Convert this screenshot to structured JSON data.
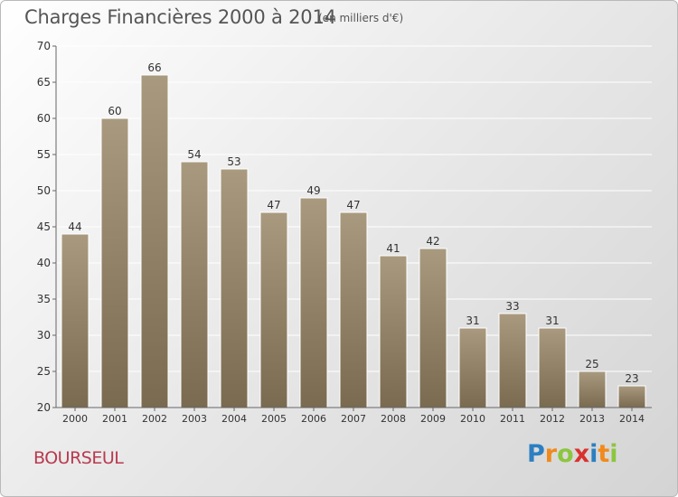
{
  "header": {
    "title": "Charges Financières 2000 à 2014",
    "subtitle": "(en milliers d'€)"
  },
  "footer": {
    "commune": "BOURSEUL",
    "logo_letters": [
      "P",
      "r",
      "o",
      "x",
      "i",
      "t",
      "i"
    ],
    "logo_colors": [
      "#2c7fc1",
      "#f08a1c",
      "#8cc63f",
      "#d9322e",
      "#2c7fc1",
      "#f08a1c",
      "#8cc63f"
    ]
  },
  "colors": {
    "bar_top": "#a99a7f",
    "bar_bottom": "#7a6a50",
    "grid": "#ffffff",
    "axis_text": "#333333"
  },
  "chart_data": {
    "type": "bar",
    "title": "Charges Financières 2000 à 2014",
    "subtitle": "(en milliers d'€)",
    "categories": [
      "2000",
      "2001",
      "2002",
      "2003",
      "2004",
      "2005",
      "2006",
      "2007",
      "2008",
      "2009",
      "2010",
      "2011",
      "2012",
      "2013",
      "2014"
    ],
    "values": [
      44,
      60,
      66,
      54,
      53,
      47,
      49,
      47,
      41,
      42,
      31,
      33,
      31,
      25,
      23
    ],
    "ylim": [
      20,
      70
    ],
    "yticks": [
      20,
      25,
      30,
      35,
      40,
      45,
      50,
      55,
      60,
      65,
      70
    ],
    "grid": true,
    "data_labels": true
  }
}
